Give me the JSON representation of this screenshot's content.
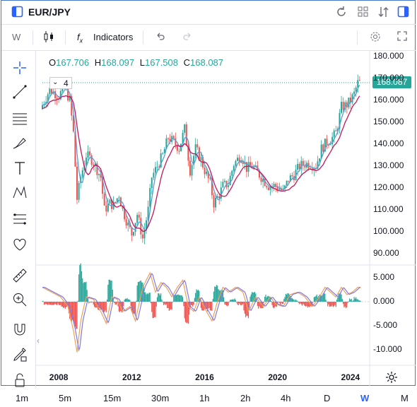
{
  "header": {
    "symbol": "EUR/JPY",
    "icons": [
      "sidebar-icon",
      "refresh-icon",
      "grid-icon",
      "sort-icon",
      "panel-icon"
    ]
  },
  "toolbar": {
    "interval": "W",
    "indicators_label": "Indicators"
  },
  "ohlc": {
    "o_label": "O",
    "o": "167.706",
    "h_label": "H",
    "h": "168.097",
    "l_label": "L",
    "l": "167.508",
    "c_label": "C",
    "c": "168.087"
  },
  "legend_collapse": "4",
  "last_price": "168.087",
  "colors": {
    "up": "#26a69a",
    "down": "#ef5350",
    "ma_fast": "#5b9bd5",
    "ma_slow": "#c2185b",
    "accent": "#2962ff"
  },
  "chart_data": {
    "type": "candlestick",
    "price_axis": [
      "180.000",
      "170.000",
      "160.000",
      "150.000",
      "140.000",
      "130.000",
      "120.000",
      "110.000",
      "100.000",
      "90.000"
    ],
    "ylim": [
      90,
      180
    ],
    "indicator_axis": [
      "5.000",
      "0.000",
      "-5.000",
      "-10.000"
    ],
    "indicator_ylim": [
      -10.5,
      6
    ],
    "time_axis": [
      "2008",
      "2012",
      "2016",
      "2020",
      "2024"
    ],
    "xlim": [
      2007.0,
      2024.6
    ],
    "price_path": [
      [
        2007.0,
        156
      ],
      [
        2007.5,
        165
      ],
      [
        2008.0,
        162
      ],
      [
        2008.3,
        166
      ],
      [
        2008.6,
        160
      ],
      [
        2008.8,
        145
      ],
      [
        2009.0,
        115
      ],
      [
        2009.2,
        125
      ],
      [
        2009.5,
        135
      ],
      [
        2009.8,
        133
      ],
      [
        2010.0,
        130
      ],
      [
        2010.3,
        125
      ],
      [
        2010.5,
        110
      ],
      [
        2010.8,
        113
      ],
      [
        2011.0,
        112
      ],
      [
        2011.3,
        117
      ],
      [
        2011.5,
        110
      ],
      [
        2011.8,
        103
      ],
      [
        2012.0,
        99
      ],
      [
        2012.3,
        108
      ],
      [
        2012.6,
        97
      ],
      [
        2012.9,
        110
      ],
      [
        2013.1,
        125
      ],
      [
        2013.4,
        130
      ],
      [
        2013.7,
        135
      ],
      [
        2014.0,
        143
      ],
      [
        2014.3,
        141
      ],
      [
        2014.6,
        138
      ],
      [
        2014.9,
        147
      ],
      [
        2015.2,
        128
      ],
      [
        2015.5,
        138
      ],
      [
        2015.8,
        133
      ],
      [
        2016.0,
        128
      ],
      [
        2016.3,
        122
      ],
      [
        2016.5,
        113
      ],
      [
        2016.8,
        117
      ],
      [
        2017.0,
        121
      ],
      [
        2017.3,
        122
      ],
      [
        2017.6,
        131
      ],
      [
        2018.0,
        135
      ],
      [
        2018.3,
        129
      ],
      [
        2018.6,
        130
      ],
      [
        2018.9,
        127
      ],
      [
        2019.2,
        124
      ],
      [
        2019.5,
        121
      ],
      [
        2019.8,
        121
      ],
      [
        2020.1,
        120
      ],
      [
        2020.3,
        118
      ],
      [
        2020.6,
        124
      ],
      [
        2020.9,
        126
      ],
      [
        2021.2,
        130
      ],
      [
        2021.5,
        131
      ],
      [
        2021.8,
        131
      ],
      [
        2022.1,
        130
      ],
      [
        2022.4,
        138
      ],
      [
        2022.7,
        141
      ],
      [
        2022.9,
        142
      ],
      [
        2023.2,
        145
      ],
      [
        2023.5,
        157
      ],
      [
        2023.8,
        158
      ],
      [
        2024.0,
        160
      ],
      [
        2024.2,
        163
      ],
      [
        2024.4,
        168
      ]
    ],
    "indicator_path": [
      [
        2007.0,
        3
      ],
      [
        2007.5,
        2
      ],
      [
        2008.0,
        1
      ],
      [
        2008.4,
        -1
      ],
      [
        2008.7,
        -6
      ],
      [
        2008.9,
        -10.5
      ],
      [
        2009.1,
        -4
      ],
      [
        2009.4,
        1
      ],
      [
        2009.8,
        0.5
      ],
      [
        2010.2,
        -2
      ],
      [
        2010.5,
        -4.5
      ],
      [
        2010.8,
        1
      ],
      [
        2011.1,
        0.5
      ],
      [
        2011.4,
        -2
      ],
      [
        2011.8,
        -1
      ],
      [
        2012.1,
        -4
      ],
      [
        2012.5,
        3
      ],
      [
        2012.9,
        6
      ],
      [
        2013.2,
        2
      ],
      [
        2013.5,
        4
      ],
      [
        2013.8,
        3
      ],
      [
        2014.1,
        1
      ],
      [
        2014.4,
        3
      ],
      [
        2014.7,
        4.5
      ],
      [
        2015.0,
        -1
      ],
      [
        2015.3,
        -2
      ],
      [
        2015.6,
        1
      ],
      [
        2016.0,
        -2
      ],
      [
        2016.3,
        -4
      ],
      [
        2016.6,
        0
      ],
      [
        2016.9,
        3
      ],
      [
        2017.2,
        2
      ],
      [
        2017.6,
        3
      ],
      [
        2018.0,
        2
      ],
      [
        2018.3,
        -2
      ],
      [
        2018.7,
        1
      ],
      [
        2019.1,
        -1
      ],
      [
        2019.5,
        1
      ],
      [
        2019.8,
        -0.5
      ],
      [
        2020.2,
        -1
      ],
      [
        2020.6,
        1.5
      ],
      [
        2021.0,
        2
      ],
      [
        2021.4,
        1
      ],
      [
        2021.8,
        -1
      ],
      [
        2022.2,
        1
      ],
      [
        2022.5,
        3
      ],
      [
        2022.8,
        2
      ],
      [
        2023.1,
        1
      ],
      [
        2023.4,
        3
      ],
      [
        2023.7,
        1.5
      ],
      [
        2024.0,
        2
      ],
      [
        2024.3,
        3
      ]
    ],
    "grid": false
  },
  "timeframes": [
    "1m",
    "5m",
    "15m",
    "30m",
    "1h",
    "2h",
    "4h",
    "D",
    "W",
    "M"
  ],
  "selected_timeframe": "W"
}
